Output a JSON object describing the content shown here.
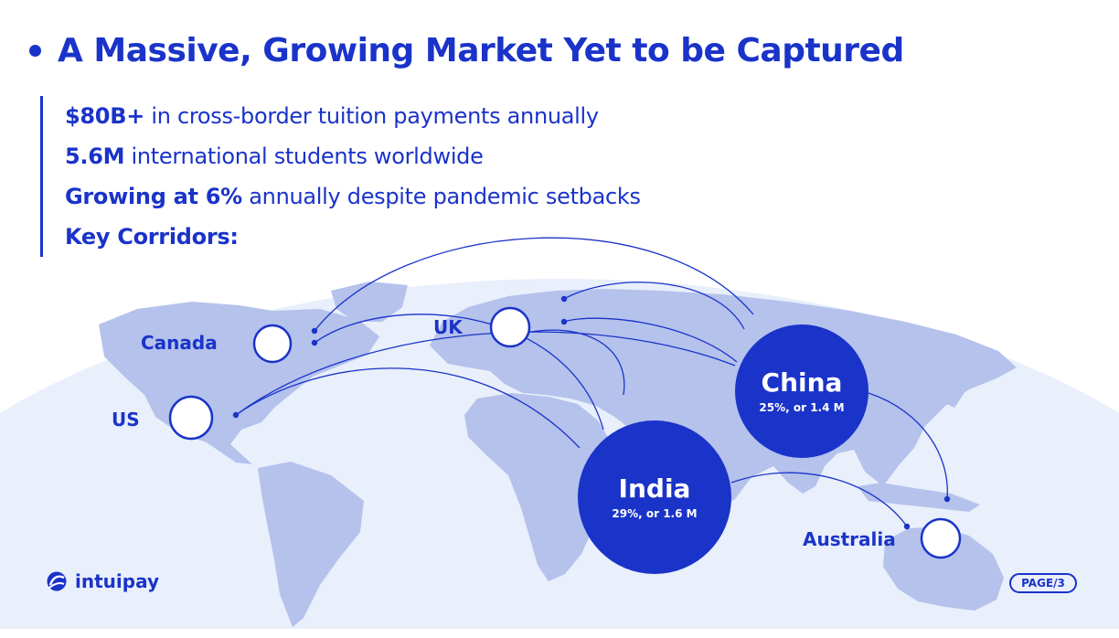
{
  "header": {
    "title": "A Massive, Growing Market Yet to be Captured"
  },
  "bullets": [
    {
      "bold": "$80B+",
      "text": " in cross-border tuition payments annually"
    },
    {
      "bold": "5.6M",
      "text": " international students worldwide"
    },
    {
      "bold": "Growing at 6%",
      "text": " annually despite pandemic setbacks"
    },
    {
      "bold": "Key Corridors:",
      "text": ""
    }
  ],
  "map": {
    "destinations": {
      "canada": "Canada",
      "uk": "UK",
      "us": "US",
      "australia": "Australia"
    },
    "origins": {
      "china": {
        "name": "China",
        "stat": "25%, or 1.4 M"
      },
      "india": {
        "name": "India",
        "stat": "29%, or 1.6 M"
      }
    }
  },
  "footer": {
    "brand": "intuipay",
    "page": "PAGE/3"
  },
  "colors": {
    "accent": "#1a33c9",
    "land": "#b4c2ec",
    "sea": "#e9effb"
  }
}
